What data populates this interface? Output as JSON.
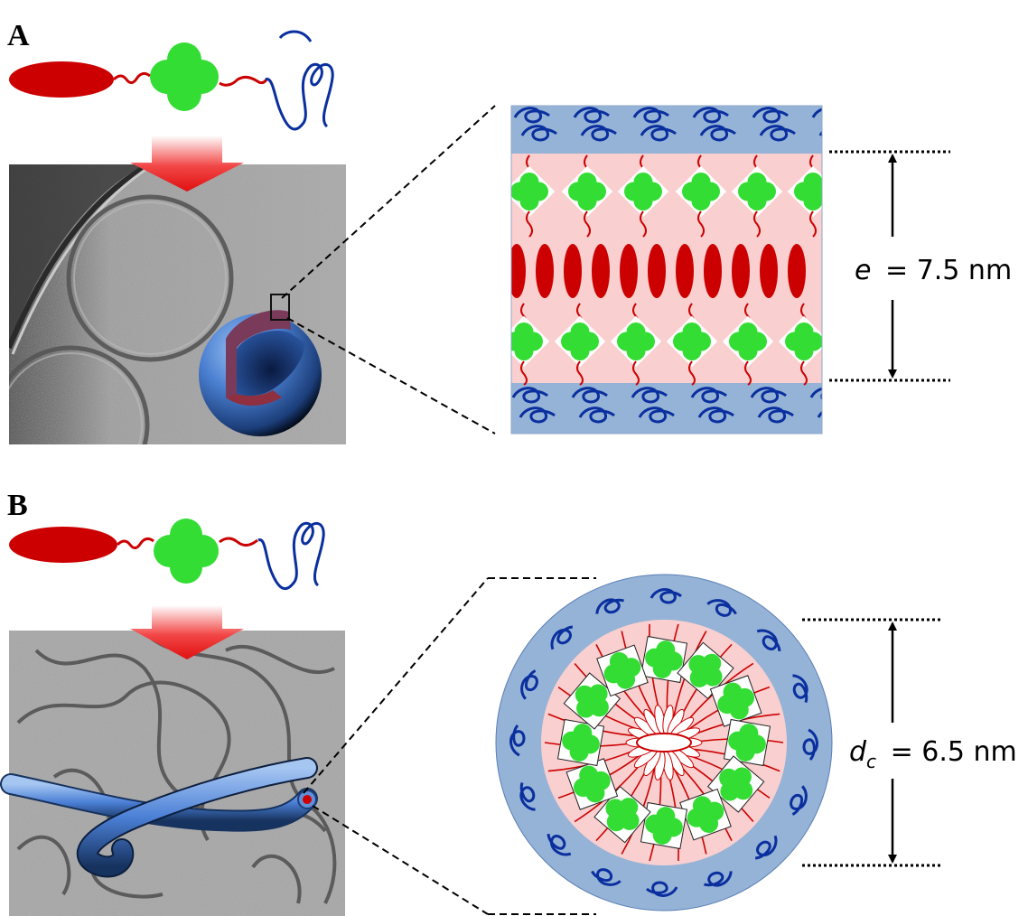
{
  "panels": [
    {
      "letter": "A",
      "dimension": {
        "variable": "e",
        "subscript": "",
        "value": "= 7.5 nm"
      }
    },
    {
      "letter": "B",
      "dimension": {
        "variable": "d",
        "subscript": "c",
        "value": "= 6.5 nm"
      }
    }
  ],
  "colors": {
    "hydrophobic_core": "#cc0000",
    "aromatic_block": "#33dd33",
    "hydrophilic_corona": "#0a2f9e",
    "corona_shell": "#95b3d7",
    "core_region": "#f9cfcf",
    "arrow": "#ee1c1c"
  },
  "icons": [
    "molecule-schematic",
    "down-arrow",
    "cryo-tem-micrograph",
    "vesicle-sphere",
    "cylinder-tube",
    "bilayer-schematic",
    "micelle-cross-section"
  ]
}
